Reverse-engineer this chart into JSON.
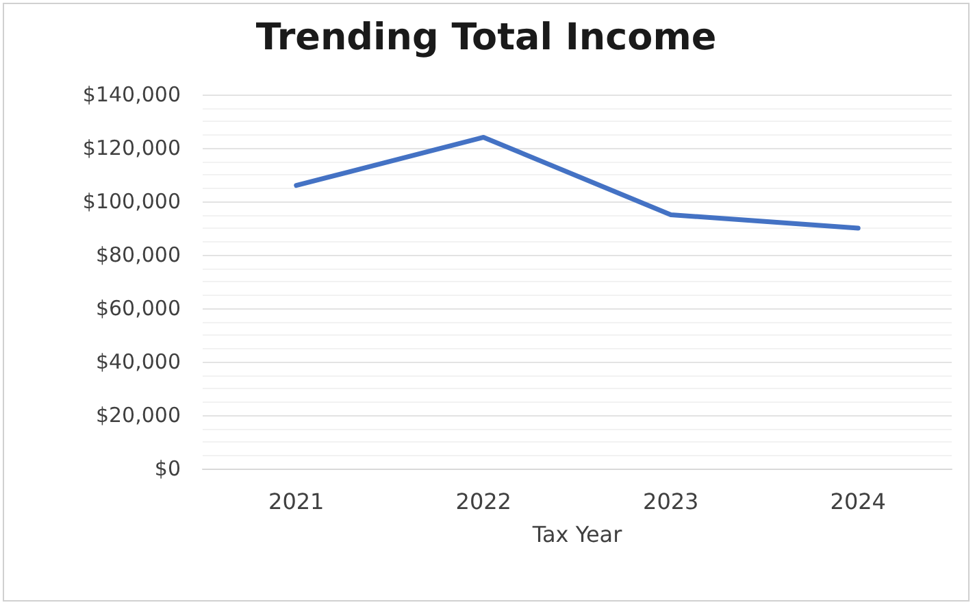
{
  "chart_data": {
    "type": "line",
    "title": "Trending Total Income",
    "xlabel": "Tax Year",
    "categories": [
      "2021",
      "2022",
      "2023",
      "2024"
    ],
    "series": [
      {
        "color": "#4472c4",
        "values": [
          106000,
          124000,
          95000,
          90000
        ]
      }
    ],
    "ylim": [
      0,
      140000
    ],
    "yticks": [
      {
        "value": 0,
        "label": "$0"
      },
      {
        "value": 20000,
        "label": "$20,000"
      },
      {
        "value": 40000,
        "label": "$40,000"
      },
      {
        "value": 60000,
        "label": "$60,000"
      },
      {
        "value": 80000,
        "label": "$80,000"
      },
      {
        "value": 100000,
        "label": "$100,000"
      },
      {
        "value": 120000,
        "label": "$120,000"
      },
      {
        "value": 140000,
        "label": "$140,000"
      }
    ],
    "grid": "y",
    "marker": "none",
    "line_style": "solid"
  }
}
